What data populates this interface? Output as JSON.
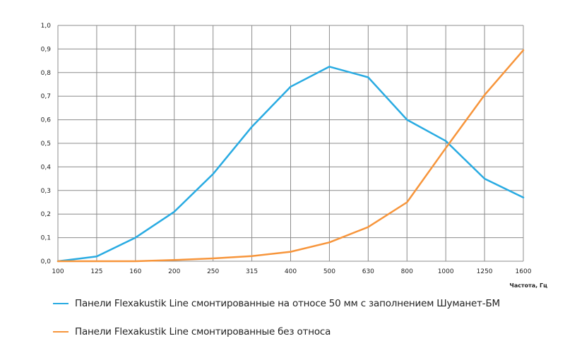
{
  "chart_data": {
    "type": "line",
    "categories": [
      "100",
      "125",
      "160",
      "200",
      "250",
      "315",
      "400",
      "500",
      "630",
      "800",
      "1000",
      "1250",
      "1600"
    ],
    "y_ticks": [
      "0,0",
      "0,1",
      "0,2",
      "0,3",
      "0,4",
      "0,5",
      "0,6",
      "0,7",
      "0,8",
      "0,9",
      "1,0"
    ],
    "ylim": [
      0,
      1.0
    ],
    "xlabel": "Частота, Гц",
    "ylabel": "",
    "grid": true,
    "legend_position": "bottom",
    "series": [
      {
        "name": "Панели Flexakustik Line смонтированные на относе 50 мм с заполнением Шуманет-БМ",
        "color": "#29abe2",
        "values": [
          0.0,
          0.02,
          0.1,
          0.21,
          0.37,
          0.57,
          0.74,
          0.825,
          0.78,
          0.6,
          0.51,
          0.35,
          0.27
        ]
      },
      {
        "name": "Панели Flexakustik Line смонтированные без относа",
        "color": "#f7953b",
        "values": [
          0.0,
          0.0,
          0.0,
          0.005,
          0.012,
          0.022,
          0.04,
          0.08,
          0.145,
          0.25,
          0.48,
          0.705,
          0.895
        ]
      }
    ]
  }
}
